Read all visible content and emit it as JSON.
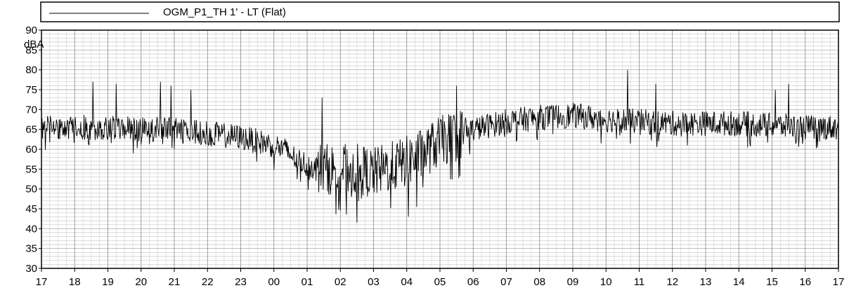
{
  "chart_data": {
    "type": "line",
    "title": "",
    "xlabel": "",
    "ylabel": "dBA",
    "legend": {
      "placement": "top",
      "entries": [
        "OGM_P1_TH 1' - LT (Flat)"
      ]
    },
    "ylim": [
      30,
      90
    ],
    "y_major_ticks": [
      30,
      35,
      40,
      45,
      50,
      55,
      60,
      65,
      70,
      75,
      80,
      85,
      90
    ],
    "y_minor_step": 1,
    "x_tick_labels": [
      "17",
      "18",
      "19",
      "20",
      "21",
      "22",
      "23",
      "00",
      "01",
      "02",
      "03",
      "04",
      "05",
      "06",
      "07",
      "08",
      "09",
      "10",
      "11",
      "12",
      "13",
      "14",
      "15",
      "16",
      "17"
    ],
    "x_range_hours": [
      0,
      24
    ],
    "grid": true,
    "line_color": "#000000",
    "series": [
      {
        "name": "OGM_P1_TH 1' - LT (Flat)",
        "interval_minutes": 1,
        "profile_hours": [
          0,
          1,
          2,
          3,
          4,
          5,
          6,
          6.5,
          7,
          7.3,
          7.6,
          8,
          8.5,
          9,
          9.5,
          10,
          10.3,
          10.7,
          11,
          11.5,
          12,
          13,
          13.5,
          14,
          14.5,
          15,
          16,
          17,
          18,
          19,
          20,
          21,
          22,
          23,
          24
        ],
        "profile_mean_dBA": [
          65.5,
          65.5,
          65.5,
          65,
          65,
          64,
          63,
          62,
          61,
          60,
          58,
          56,
          55,
          55,
          55,
          54,
          55,
          56,
          57,
          59,
          62,
          65,
          66,
          67,
          67.5,
          68,
          68.5,
          67.5,
          67,
          66.5,
          66.5,
          66.5,
          66,
          65.5,
          65.5
        ],
        "spikes": [
          {
            "hour": 1.55,
            "max_dBA": 77
          },
          {
            "hour": 2.25,
            "max_dBA": 76.5
          },
          {
            "hour": 3.58,
            "max_dBA": 77
          },
          {
            "hour": 3.9,
            "max_dBA": 76
          },
          {
            "hour": 4.5,
            "max_dBA": 75
          },
          {
            "hour": 8.45,
            "max_dBA": 73
          },
          {
            "hour": 9.0,
            "max_dBA": 44.5
          },
          {
            "hour": 9.5,
            "max_dBA": 41.5
          },
          {
            "hour": 11.05,
            "max_dBA": 43
          },
          {
            "hour": 11.3,
            "max_dBA": 45.5
          },
          {
            "hour": 12.5,
            "max_dBA": 76
          },
          {
            "hour": 17.65,
            "max_dBA": 80
          },
          {
            "hour": 18.5,
            "max_dBA": 76.5
          },
          {
            "hour": 22.1,
            "max_dBA": 75
          },
          {
            "hour": 22.5,
            "max_dBA": 76.5
          }
        ]
      }
    ]
  }
}
